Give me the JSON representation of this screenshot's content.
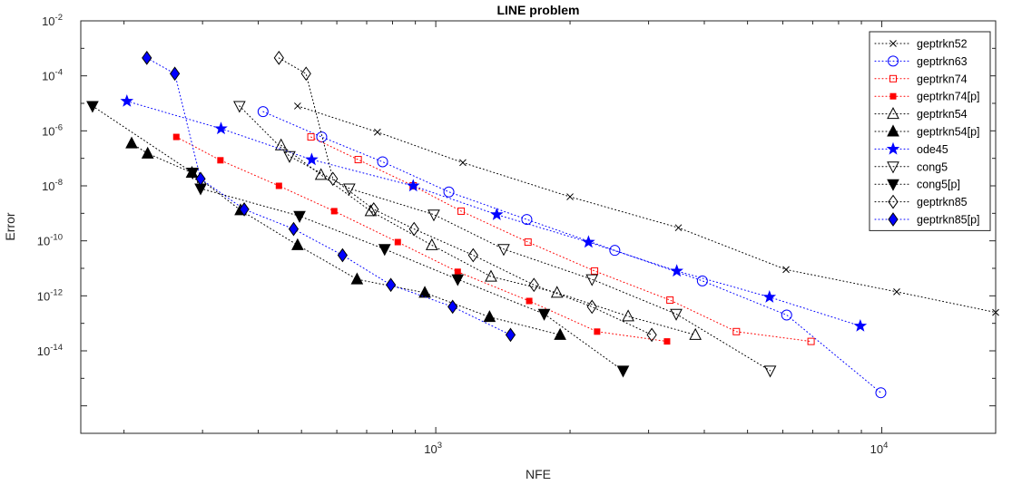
{
  "chart_data": {
    "type": "line",
    "title": "LINE problem",
    "xlabel": "NFE",
    "ylabel": "Error",
    "xscale": "log",
    "yscale": "log",
    "xlim": [
      160,
      18000
    ],
    "ylim": [
      1e-17,
      0.01
    ],
    "x_ticks": [
      {
        "value": 1000,
        "mant": "10",
        "exp": "3"
      },
      {
        "value": 10000,
        "mant": "10",
        "exp": "4"
      }
    ],
    "y_ticks": [
      {
        "value": 0.01,
        "mant": "10",
        "exp": "-2"
      },
      {
        "value": 0.0001,
        "mant": "10",
        "exp": "-4"
      },
      {
        "value": 1e-06,
        "mant": "10",
        "exp": "-6"
      },
      {
        "value": 1e-08,
        "mant": "10",
        "exp": "-8"
      },
      {
        "value": 1e-10,
        "mant": "10",
        "exp": "-10"
      },
      {
        "value": 1e-12,
        "mant": "10",
        "exp": "-12"
      },
      {
        "value": 1e-14,
        "mant": "10",
        "exp": "-14"
      }
    ],
    "grid": false,
    "legend_position": "top-right",
    "series": [
      {
        "name": "geptrkn52",
        "marker": "x",
        "color": "#000000",
        "filled": false,
        "x": [
          490,
          740,
          1150,
          2000,
          3500,
          6100,
          10800,
          18000
        ],
        "y": [
          8e-06,
          9e-07,
          7e-08,
          4e-09,
          3e-10,
          9e-12,
          1.4e-12,
          2.5e-13
        ]
      },
      {
        "name": "geptrkn63",
        "marker": "circle",
        "color": "#0000ff",
        "filled": false,
        "x": [
          410,
          555,
          760,
          1070,
          1600,
          2520,
          3960,
          6120,
          9950
        ],
        "y": [
          5e-06,
          6e-07,
          7.5e-08,
          6e-09,
          6e-10,
          4.5e-11,
          3.5e-12,
          2e-13,
          3e-16
        ]
      },
      {
        "name": "geptrkn74",
        "marker": "square",
        "color": "#ff0000",
        "filled": false,
        "x": [
          525,
          670,
          890,
          1140,
          1610,
          2270,
          3350,
          4720,
          6940
        ],
        "y": [
          6e-07,
          9e-08,
          1e-08,
          1.2e-09,
          9e-11,
          8e-12,
          7e-13,
          5e-14,
          2.2e-14
        ]
      },
      {
        "name": "geptrkn74[p]",
        "marker": "square",
        "color": "#ff0000",
        "filled": true,
        "x": [
          262,
          329,
          445,
          592,
          822,
          1120,
          1620,
          2300,
          3300
        ],
        "y": [
          6e-07,
          8.5e-08,
          1e-08,
          1.2e-09,
          9e-11,
          7.5e-12,
          6.5e-13,
          5e-14,
          2.2e-14
        ]
      },
      {
        "name": "geptrkn54",
        "marker": "triangle-up",
        "color": "#000000",
        "filled": false,
        "x": [
          450,
          553,
          715,
          980,
          1330,
          1870,
          2700,
          3820
        ],
        "y": [
          3e-07,
          2.5e-08,
          1.2e-09,
          7e-11,
          5e-12,
          1.3e-12,
          1.8e-13,
          3.8e-14
        ]
      },
      {
        "name": "geptrkn54[p]",
        "marker": "triangle-up",
        "color": "#000000",
        "filled": true,
        "x": [
          208,
          226,
          284,
          365,
          490,
          666,
          945,
          1320,
          1900
        ],
        "y": [
          3.5e-07,
          1.5e-07,
          3e-08,
          1.3e-09,
          7e-11,
          4e-12,
          1.3e-12,
          1.7e-13,
          3.8e-14
        ]
      },
      {
        "name": "ode45",
        "marker": "star",
        "color": "#0000ff",
        "filled": true,
        "x": [
          203,
          330,
          527,
          890,
          1370,
          2200,
          3470,
          5600,
          8950
        ],
        "y": [
          1.2e-05,
          1.2e-06,
          9e-08,
          1e-08,
          9e-10,
          9e-11,
          8e-12,
          9e-13,
          8e-14
        ]
      },
      {
        "name": "cong5",
        "marker": "triangle-down",
        "color": "#000000",
        "filled": false,
        "x": [
          363,
          470,
          640,
          990,
          1420,
          2240,
          3460,
          5620
        ],
        "y": [
          8e-06,
          1.2e-07,
          8e-09,
          9e-10,
          5e-11,
          4e-12,
          2.2e-13,
          1.9e-15
        ]
      },
      {
        "name": "cong5[p]",
        "marker": "triangle-down",
        "color": "#000000",
        "filled": true,
        "x": [
          170,
          285,
          297,
          495,
          768,
          1120,
          1750,
          2630
        ],
        "y": [
          8e-06,
          3e-08,
          8e-09,
          8e-10,
          5e-11,
          4e-12,
          2.2e-13,
          1.9e-15
        ]
      },
      {
        "name": "geptrkn85",
        "marker": "diamond",
        "color": "#000000",
        "filled": false,
        "x": [
          445,
          512,
          588,
          726,
          894,
          1213,
          1660,
          2240,
          3050
        ],
        "y": [
          0.00045,
          0.00012,
          1.8e-08,
          1.4e-09,
          2.7e-10,
          3e-11,
          2.5e-12,
          4e-13,
          3.8e-14
        ]
      },
      {
        "name": "geptrkn85[p]",
        "marker": "diamond",
        "color": "#0000ff",
        "filled": true,
        "x": [
          225,
          260,
          297,
          372,
          480,
          618,
          793,
          1091,
          1471
        ],
        "y": [
          0.00045,
          0.00012,
          1.8e-08,
          1.4e-09,
          2.7e-10,
          3e-11,
          2.5e-12,
          4e-13,
          3.8e-14
        ]
      }
    ]
  }
}
